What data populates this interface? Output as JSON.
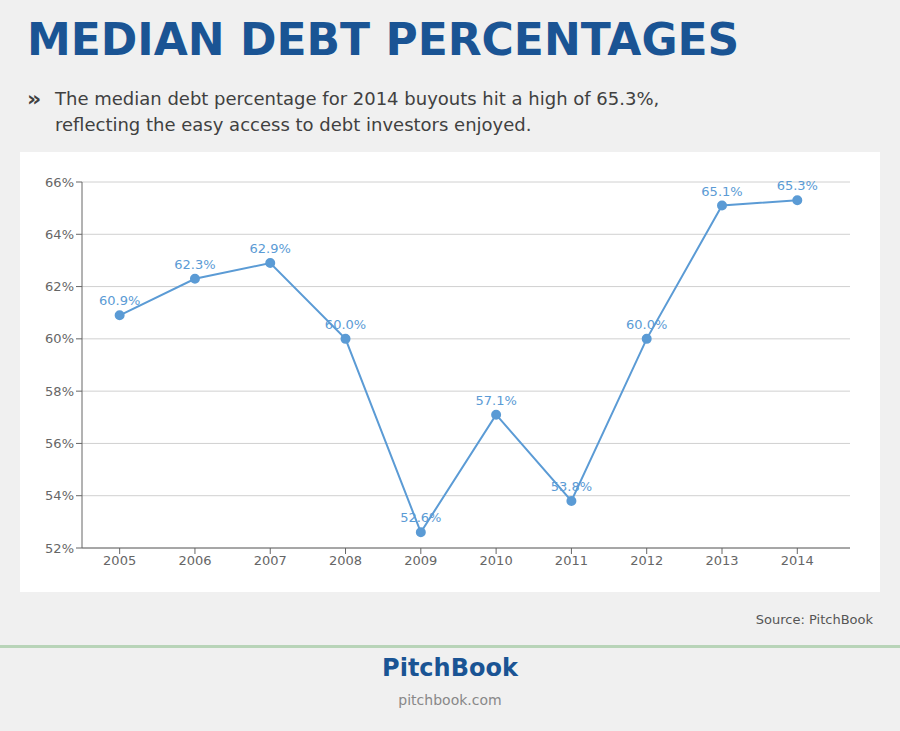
{
  "chart_data": {
    "type": "line",
    "title": "MEDIAN DEBT PERCENTAGES",
    "subtitle": [
      "»",
      "The median debt percentage for 2014 buyouts hit a high of 65.3%,",
      "reflecting the easy access to debt investors enjoyed."
    ],
    "x": [
      2005,
      2006,
      2007,
      2008,
      2009,
      2010,
      2011,
      2012,
      2013,
      2014
    ],
    "values": [
      60.9,
      62.3,
      62.9,
      60.0,
      52.6,
      57.1,
      53.8,
      60.0,
      65.1,
      65.3
    ],
    "value_labels": [
      "60.9%",
      "62.3%",
      "62.9%",
      "60.0%",
      "52.6%",
      "57.1%",
      "53.8%",
      "60.0%",
      "65.1%",
      "65.3%"
    ],
    "color": "#5b9bd5",
    "marker": "circle",
    "xlim": [
      2004.5,
      2014.7
    ],
    "xticks": [
      2005,
      2006,
      2007,
      2008,
      2009,
      2010,
      2011,
      2012,
      2013,
      2014
    ],
    "ylim": [
      52,
      66
    ],
    "yticks": [
      {
        "value": 52,
        "label": "52%"
      },
      {
        "value": 54,
        "label": "54%"
      },
      {
        "value": 56,
        "label": "56%"
      },
      {
        "value": 58,
        "label": "58%"
      },
      {
        "value": 60,
        "label": "60%"
      },
      {
        "value": 62,
        "label": "62%"
      },
      {
        "value": 64,
        "label": "64%"
      },
      {
        "value": 66,
        "label": "66%"
      }
    ],
    "grid": true,
    "data_labels": true,
    "annotations": [
      "Source: PitchBook",
      "PitchBook",
      "pitchbook.com"
    ]
  }
}
